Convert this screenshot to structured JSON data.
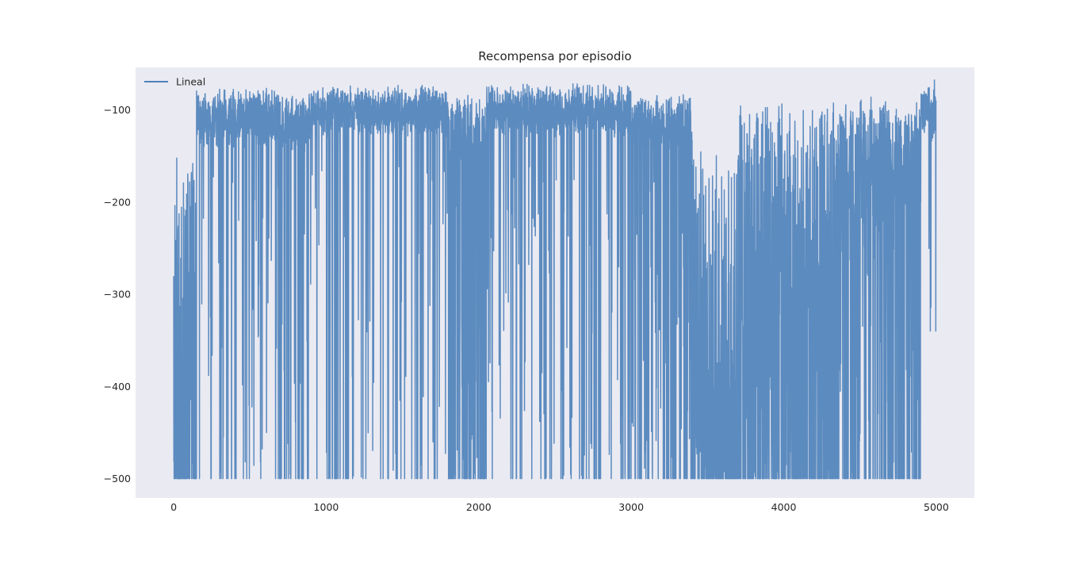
{
  "chart_data": {
    "type": "line",
    "title": "Recompensa por episodio",
    "xlabel": "",
    "ylabel": "",
    "xlim": [
      -250,
      5250
    ],
    "ylim": [
      -521,
      -54
    ],
    "xticks": [
      0,
      1000,
      2000,
      3000,
      4000,
      5000
    ],
    "xtick_labels": [
      "0",
      "1000",
      "2000",
      "3000",
      "4000",
      "5000"
    ],
    "yticks": [
      -100,
      -200,
      -300,
      -400,
      -500
    ],
    "ytick_labels": [
      "−100",
      "−200",
      "−300",
      "−400",
      "−500"
    ],
    "grid": false,
    "legend_position": "top-left",
    "style": {
      "background": "#eaeaf2",
      "line_color": "#4c81b9",
      "line_opacity": 0.9
    },
    "series": [
      {
        "name": "Lineal",
        "episodes": 5000,
        "segments": [
          {
            "x": [
              0,
              60
            ],
            "baseline": -320,
            "upper": -150,
            "lower": -500,
            "drop_prob": 0.55
          },
          {
            "x": [
              60,
              150
            ],
            "baseline": -260,
            "upper": -130,
            "lower": -500,
            "drop_prob": 0.55
          },
          {
            "x": [
              150,
              700
            ],
            "baseline": -110,
            "upper": -75,
            "lower": -500,
            "drop_prob": 0.12
          },
          {
            "x": [
              700,
              900
            ],
            "baseline": -115,
            "upper": -80,
            "lower": -500,
            "drop_prob": 0.2
          },
          {
            "x": [
              900,
              1200
            ],
            "baseline": -100,
            "upper": -72,
            "lower": -500,
            "drop_prob": 0.12
          },
          {
            "x": [
              1200,
              1800
            ],
            "baseline": -100,
            "upper": -72,
            "lower": -500,
            "drop_prob": 0.1
          },
          {
            "x": [
              1800,
              2050
            ],
            "baseline": -140,
            "upper": -80,
            "lower": -500,
            "drop_prob": 0.35
          },
          {
            "x": [
              2050,
              3000
            ],
            "baseline": -100,
            "upper": -70,
            "lower": -500,
            "drop_prob": 0.1
          },
          {
            "x": [
              3000,
              3400
            ],
            "baseline": -115,
            "upper": -80,
            "lower": -500,
            "drop_prob": 0.22
          },
          {
            "x": [
              3400,
              3700
            ],
            "baseline": -330,
            "upper": -140,
            "lower": -500,
            "drop_prob": 0.55
          },
          {
            "x": [
              3700,
              4350
            ],
            "baseline": -260,
            "upper": -90,
            "lower": -500,
            "drop_prob": 0.45
          },
          {
            "x": [
              4350,
              4700
            ],
            "baseline": -180,
            "upper": -85,
            "lower": -500,
            "drop_prob": 0.3
          },
          {
            "x": [
              4700,
              4900
            ],
            "baseline": -170,
            "upper": -90,
            "lower": -500,
            "drop_prob": 0.3
          },
          {
            "x": [
              4900,
              5000
            ],
            "baseline": -100,
            "upper": -65,
            "lower": -340,
            "drop_prob": 0.05
          }
        ]
      }
    ]
  }
}
